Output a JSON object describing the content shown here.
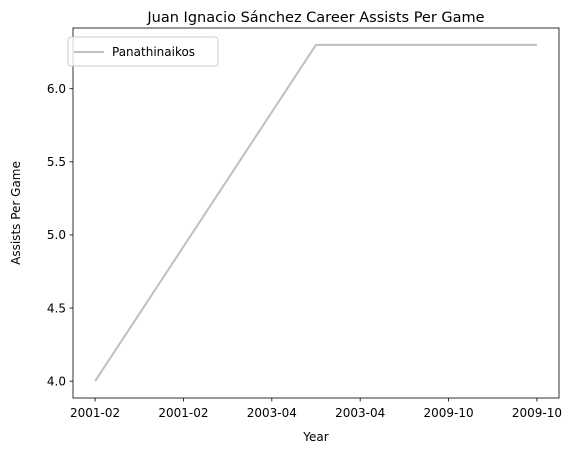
{
  "chart_data": {
    "type": "line",
    "title": "Juan Ignacio Sánchez Career Assists Per Game",
    "xlabel": "Year",
    "ylabel": "Assists Per Game",
    "x_tick_labels": [
      "2001-02",
      "2001-02",
      "2003-04",
      "2003-04",
      "2009-10",
      "2009-10"
    ],
    "y_tick_labels": [
      "4.0",
      "4.5",
      "5.0",
      "5.5",
      "6.0"
    ],
    "y_ticks": [
      4.0,
      4.5,
      5.0,
      5.5,
      6.0
    ],
    "ylim": [
      3.885,
      6.415
    ],
    "xlim": [
      -0.25,
      5.25
    ],
    "grid": false,
    "legend_position": "top-left",
    "series": [
      {
        "name": "Panathinaikos",
        "color": "#bfbfbf",
        "x": [
          0,
          2.5,
          5
        ],
        "y": [
          4.0,
          6.3,
          6.3
        ]
      }
    ]
  }
}
